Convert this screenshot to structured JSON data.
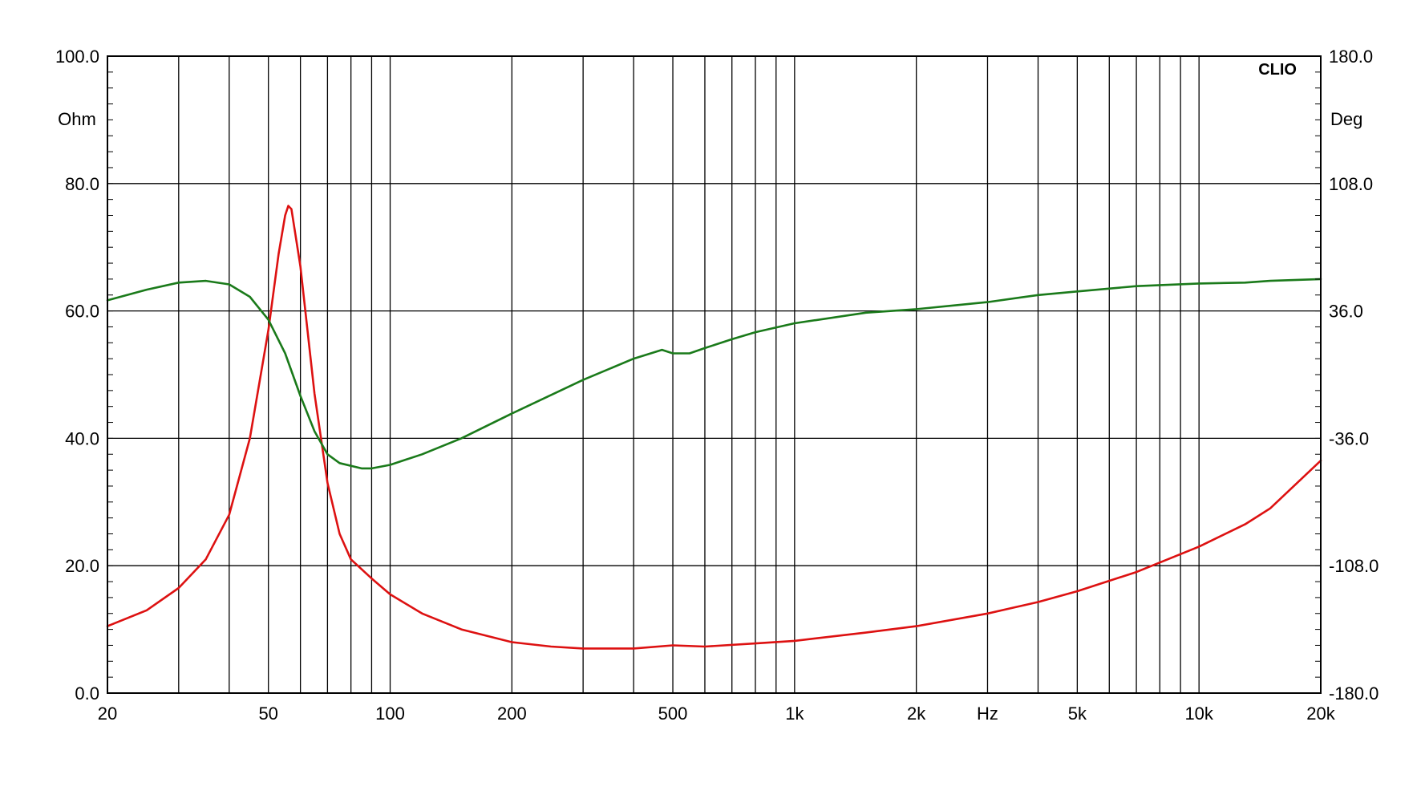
{
  "chart_data": {
    "type": "line",
    "watermark": "CLIO",
    "x_axis": {
      "scale": "log",
      "range": [
        20,
        20000
      ],
      "unit_label": "Hz",
      "tick_labels": [
        {
          "value": 20,
          "label": "20"
        },
        {
          "value": 50,
          "label": "50"
        },
        {
          "value": 100,
          "label": "100"
        },
        {
          "value": 200,
          "label": "200"
        },
        {
          "value": 500,
          "label": "500"
        },
        {
          "value": 1000,
          "label": "1k"
        },
        {
          "value": 2000,
          "label": "2k"
        },
        {
          "value": 5000,
          "label": "5k"
        },
        {
          "value": 10000,
          "label": "10k"
        },
        {
          "value": 20000,
          "label": "20k"
        }
      ],
      "gridlines": [
        20,
        30,
        40,
        50,
        60,
        70,
        80,
        90,
        100,
        200,
        300,
        400,
        500,
        600,
        700,
        800,
        900,
        1000,
        2000,
        3000,
        4000,
        5000,
        6000,
        7000,
        8000,
        9000,
        10000,
        20000
      ]
    },
    "y_left": {
      "range": [
        0,
        100
      ],
      "unit_label": "Ohm",
      "ticks": [
        {
          "value": 0,
          "label": "0.0"
        },
        {
          "value": 20,
          "label": "20.0"
        },
        {
          "value": 40,
          "label": "40.0"
        },
        {
          "value": 60,
          "label": "60.0"
        },
        {
          "value": 80,
          "label": "80.0"
        },
        {
          "value": 100,
          "label": "100.0"
        }
      ]
    },
    "y_right": {
      "range": [
        -180,
        180
      ],
      "unit_label": "Deg",
      "ticks": [
        {
          "value": -180,
          "label": "-180.0"
        },
        {
          "value": -108,
          "label": "-108.0"
        },
        {
          "value": -36,
          "label": "-36.0"
        },
        {
          "value": 36,
          "label": "36.0"
        },
        {
          "value": 108,
          "label": "108.0"
        },
        {
          "value": 180,
          "label": "180.0"
        }
      ]
    },
    "grid": true,
    "series": [
      {
        "color": "#dd1111",
        "axis": "left",
        "points": [
          [
            20,
            10.5
          ],
          [
            25,
            13
          ],
          [
            30,
            16.5
          ],
          [
            35,
            21
          ],
          [
            40,
            28
          ],
          [
            45,
            40
          ],
          [
            50,
            57
          ],
          [
            53,
            69
          ],
          [
            55,
            75
          ],
          [
            56,
            76.5
          ],
          [
            57,
            76
          ],
          [
            60,
            67
          ],
          [
            65,
            47
          ],
          [
            70,
            33
          ],
          [
            75,
            25
          ],
          [
            80,
            21
          ],
          [
            90,
            18
          ],
          [
            100,
            15.5
          ],
          [
            120,
            12.5
          ],
          [
            150,
            10
          ],
          [
            200,
            8
          ],
          [
            250,
            7.3
          ],
          [
            300,
            7
          ],
          [
            400,
            7
          ],
          [
            500,
            7.5
          ],
          [
            600,
            7.3
          ],
          [
            800,
            7.8
          ],
          [
            1000,
            8.2
          ],
          [
            1500,
            9.5
          ],
          [
            2000,
            10.5
          ],
          [
            3000,
            12.5
          ],
          [
            4000,
            14.3
          ],
          [
            5000,
            16
          ],
          [
            7000,
            19
          ],
          [
            10000,
            23
          ],
          [
            13000,
            26.5
          ],
          [
            15000,
            29
          ],
          [
            20000,
            36.5
          ]
        ]
      },
      {
        "color": "#1a7a1a",
        "axis": "right",
        "points": [
          [
            20,
            42
          ],
          [
            25,
            48
          ],
          [
            30,
            52
          ],
          [
            35,
            53
          ],
          [
            40,
            51
          ],
          [
            45,
            44
          ],
          [
            50,
            31
          ],
          [
            55,
            12
          ],
          [
            60,
            -12
          ],
          [
            65,
            -32
          ],
          [
            70,
            -45
          ],
          [
            75,
            -50
          ],
          [
            85,
            -53
          ],
          [
            90,
            -53
          ],
          [
            100,
            -51
          ],
          [
            120,
            -45
          ],
          [
            150,
            -36
          ],
          [
            200,
            -22
          ],
          [
            300,
            -3
          ],
          [
            400,
            9
          ],
          [
            470,
            14
          ],
          [
            500,
            12
          ],
          [
            550,
            12
          ],
          [
            600,
            15
          ],
          [
            700,
            20
          ],
          [
            800,
            24
          ],
          [
            1000,
            29
          ],
          [
            1500,
            35
          ],
          [
            2000,
            37
          ],
          [
            3000,
            41
          ],
          [
            4000,
            45
          ],
          [
            5000,
            47
          ],
          [
            7000,
            50
          ],
          [
            10000,
            51.5
          ],
          [
            13000,
            52
          ],
          [
            15000,
            53
          ],
          [
            20000,
            54
          ]
        ]
      }
    ]
  }
}
